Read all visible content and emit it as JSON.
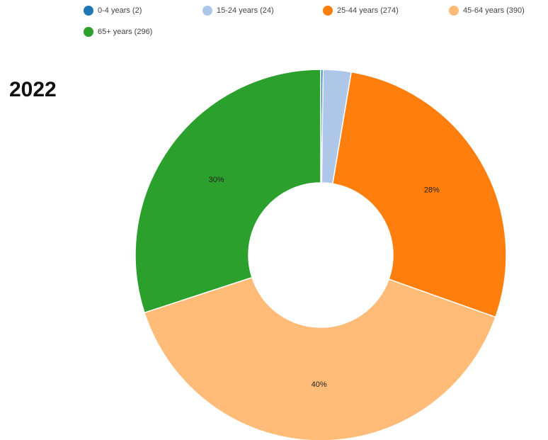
{
  "chart_data": {
    "type": "pie",
    "title": "2022",
    "legend_position": "top",
    "categories": [
      "0-4 years (2)",
      "15-24 years (24)",
      "25-44 years (274)",
      "45-64 years (390)",
      "65+ years (296)"
    ],
    "values": [
      2,
      24,
      274,
      390,
      296
    ],
    "colors": [
      "#1f77b4",
      "#aec7e8",
      "#ff7f0e",
      "#ffbb78",
      "#2ca02c"
    ],
    "slice_labels": [
      "",
      "",
      "28%",
      "40%",
      "30%"
    ]
  }
}
